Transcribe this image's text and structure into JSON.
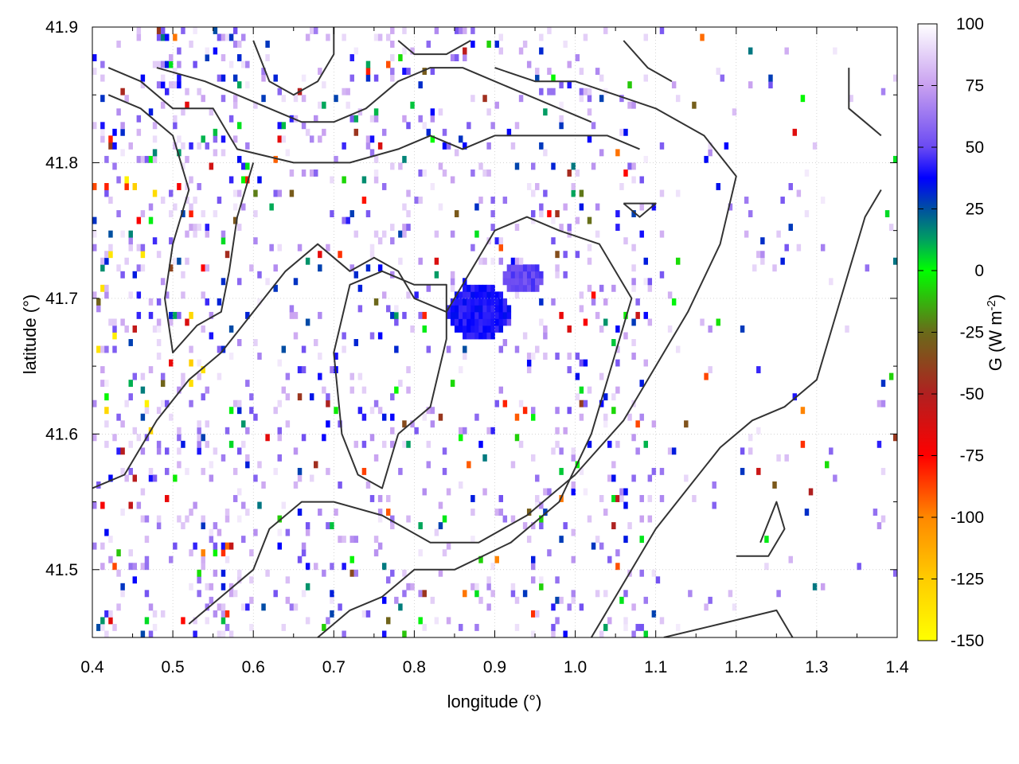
{
  "chart_data": {
    "type": "heatmap",
    "title": "",
    "xlabel": "longitude (°)",
    "ylabel": "latitude (°)",
    "colorbar_label": {
      "main": "G (W m",
      "sup": "-2",
      "close": ")"
    },
    "xlim": [
      0.4,
      1.4
    ],
    "ylim": [
      41.45,
      41.9
    ],
    "xticks": [
      "0.4",
      "0.5",
      "0.6",
      "0.7",
      "0.8",
      "0.9",
      "1.0",
      "1.1",
      "1.2",
      "1.3",
      "1.4"
    ],
    "yticks": [
      "41.5",
      "41.6",
      "41.7",
      "41.8",
      "41.9"
    ],
    "colorbar_range": [
      -150,
      100
    ],
    "colorbar_ticks": [
      "100",
      "75",
      "50",
      "25",
      "0",
      "-25",
      "-50",
      "-75",
      "-100",
      "-125",
      "-150"
    ],
    "colorbar_stops": [
      {
        "value": 100,
        "color": "#ffffff"
      },
      {
        "value": 75,
        "color": "#c8a0f0"
      },
      {
        "value": 50,
        "color": "#6a4af2"
      },
      {
        "value": 37.5,
        "color": "#0000ff"
      },
      {
        "value": 25,
        "color": "#0050a0"
      },
      {
        "value": 12.5,
        "color": "#00a060"
      },
      {
        "value": 0,
        "color": "#00ff00"
      },
      {
        "value": -25,
        "color": "#6a6a1a"
      },
      {
        "value": -50,
        "color": "#b02020"
      },
      {
        "value": -75,
        "color": "#ff0000"
      },
      {
        "value": -100,
        "color": "#ff8800"
      },
      {
        "value": -125,
        "color": "#ffcc00"
      },
      {
        "value": -150,
        "color": "#ffff00"
      }
    ],
    "grid": true,
    "contour_color": "#333333",
    "blobs": [
      {
        "lon": 0.88,
        "lat": 41.69,
        "rx": 0.04,
        "ry": 0.02,
        "value": 40
      },
      {
        "lon": 0.935,
        "lat": 41.715,
        "rx": 0.025,
        "ry": 0.012,
        "value": 50
      }
    ],
    "contours": [
      [
        [
          0.42,
          41.87
        ],
        [
          0.46,
          41.86
        ],
        [
          0.5,
          41.84
        ],
        [
          0.55,
          41.84
        ],
        [
          0.58,
          41.81
        ],
        [
          0.65,
          41.8
        ],
        [
          0.72,
          41.8
        ],
        [
          0.78,
          41.81
        ],
        [
          0.82,
          41.82
        ],
        [
          0.86,
          41.81
        ],
        [
          0.9,
          41.82
        ],
        [
          0.94,
          41.82
        ],
        [
          0.99,
          41.82
        ],
        [
          1.04,
          41.82
        ],
        [
          1.08,
          41.81
        ]
      ],
      [
        [
          0.42,
          41.85
        ],
        [
          0.46,
          41.84
        ],
        [
          0.5,
          41.82
        ],
        [
          0.52,
          41.78
        ],
        [
          0.5,
          41.74
        ],
        [
          0.49,
          41.7
        ],
        [
          0.5,
          41.66
        ],
        [
          0.53,
          41.68
        ],
        [
          0.56,
          41.69
        ],
        [
          0.57,
          41.72
        ],
        [
          0.58,
          41.76
        ],
        [
          0.6,
          41.8
        ]
      ],
      [
        [
          0.48,
          41.87
        ],
        [
          0.54,
          41.86
        ],
        [
          0.58,
          41.85
        ],
        [
          0.62,
          41.84
        ],
        [
          0.66,
          41.83
        ],
        [
          0.7,
          41.83
        ],
        [
          0.74,
          41.84
        ],
        [
          0.78,
          41.86
        ],
        [
          0.82,
          41.87
        ],
        [
          0.86,
          41.87
        ],
        [
          0.9,
          41.86
        ],
        [
          0.94,
          41.85
        ],
        [
          0.98,
          41.84
        ],
        [
          1.02,
          41.83
        ]
      ],
      [
        [
          0.6,
          41.89
        ],
        [
          0.62,
          41.86
        ],
        [
          0.65,
          41.85
        ],
        [
          0.68,
          41.86
        ],
        [
          0.7,
          41.88
        ],
        [
          0.7,
          41.9
        ]
      ],
      [
        [
          0.4,
          41.56
        ],
        [
          0.44,
          41.57
        ],
        [
          0.48,
          41.61
        ],
        [
          0.52,
          41.64
        ],
        [
          0.56,
          41.66
        ],
        [
          0.6,
          41.69
        ],
        [
          0.64,
          41.72
        ],
        [
          0.68,
          41.74
        ],
        [
          0.72,
          41.72
        ],
        [
          0.75,
          41.73
        ],
        [
          0.78,
          41.72
        ],
        [
          0.8,
          41.7
        ],
        [
          0.84,
          41.69
        ],
        [
          0.87,
          41.72
        ],
        [
          0.9,
          41.75
        ],
        [
          0.94,
          41.76
        ],
        [
          0.98,
          41.75
        ],
        [
          1.03,
          41.74
        ],
        [
          1.07,
          41.7
        ],
        [
          1.05,
          41.66
        ],
        [
          1.02,
          41.6
        ],
        [
          0.98,
          41.55
        ],
        [
          0.92,
          41.52
        ],
        [
          0.85,
          41.5
        ],
        [
          0.8,
          41.5
        ],
        [
          0.76,
          41.48
        ],
        [
          0.72,
          41.47
        ],
        [
          0.68,
          41.45
        ]
      ],
      [
        [
          0.78,
          41.6
        ],
        [
          0.82,
          41.62
        ],
        [
          0.84,
          41.67
        ],
        [
          0.84,
          41.71
        ],
        [
          0.8,
          41.71
        ],
        [
          0.76,
          41.72
        ],
        [
          0.72,
          41.71
        ],
        [
          0.7,
          41.66
        ],
        [
          0.71,
          41.6
        ],
        [
          0.73,
          41.57
        ],
        [
          0.76,
          41.56
        ],
        [
          0.78,
          41.6
        ]
      ],
      [
        [
          0.52,
          41.46
        ],
        [
          0.56,
          41.48
        ],
        [
          0.6,
          41.5
        ],
        [
          0.62,
          41.53
        ],
        [
          0.66,
          41.55
        ],
        [
          0.7,
          41.55
        ],
        [
          0.76,
          41.54
        ],
        [
          0.82,
          41.52
        ],
        [
          0.88,
          41.52
        ],
        [
          0.94,
          41.54
        ],
        [
          1.0,
          41.57
        ],
        [
          1.06,
          41.61
        ],
        [
          1.1,
          41.65
        ],
        [
          1.14,
          41.69
        ],
        [
          1.18,
          41.74
        ],
        [
          1.2,
          41.79
        ],
        [
          1.16,
          41.82
        ],
        [
          1.1,
          41.84
        ],
        [
          1.05,
          41.85
        ],
        [
          1.0,
          41.86
        ],
        [
          0.95,
          41.86
        ],
        [
          0.9,
          41.87
        ]
      ],
      [
        [
          1.02,
          41.45
        ],
        [
          1.06,
          41.49
        ],
        [
          1.1,
          41.53
        ],
        [
          1.14,
          41.56
        ],
        [
          1.18,
          41.59
        ],
        [
          1.22,
          41.61
        ],
        [
          1.26,
          41.62
        ],
        [
          1.3,
          41.64
        ],
        [
          1.32,
          41.68
        ],
        [
          1.34,
          41.72
        ],
        [
          1.36,
          41.76
        ],
        [
          1.38,
          41.78
        ]
      ],
      [
        [
          1.11,
          41.45
        ],
        [
          1.18,
          41.46
        ],
        [
          1.25,
          41.47
        ],
        [
          1.27,
          41.45
        ]
      ],
      [
        [
          1.2,
          41.51
        ],
        [
          1.24,
          41.51
        ],
        [
          1.26,
          41.53
        ],
        [
          1.25,
          41.55
        ],
        [
          1.23,
          41.52
        ]
      ],
      [
        [
          1.06,
          41.77
        ],
        [
          1.08,
          41.77
        ],
        [
          1.1,
          41.77
        ],
        [
          1.08,
          41.76
        ],
        [
          1.06,
          41.77
        ]
      ],
      [
        [
          1.34,
          41.87
        ],
        [
          1.34,
          41.84
        ],
        [
          1.36,
          41.83
        ],
        [
          1.38,
          41.82
        ]
      ],
      [
        [
          0.78,
          41.89
        ],
        [
          0.8,
          41.88
        ],
        [
          0.84,
          41.88
        ],
        [
          0.87,
          41.89
        ]
      ],
      [
        [
          1.06,
          41.89
        ],
        [
          1.09,
          41.87
        ],
        [
          1.12,
          41.86
        ]
      ]
    ]
  }
}
